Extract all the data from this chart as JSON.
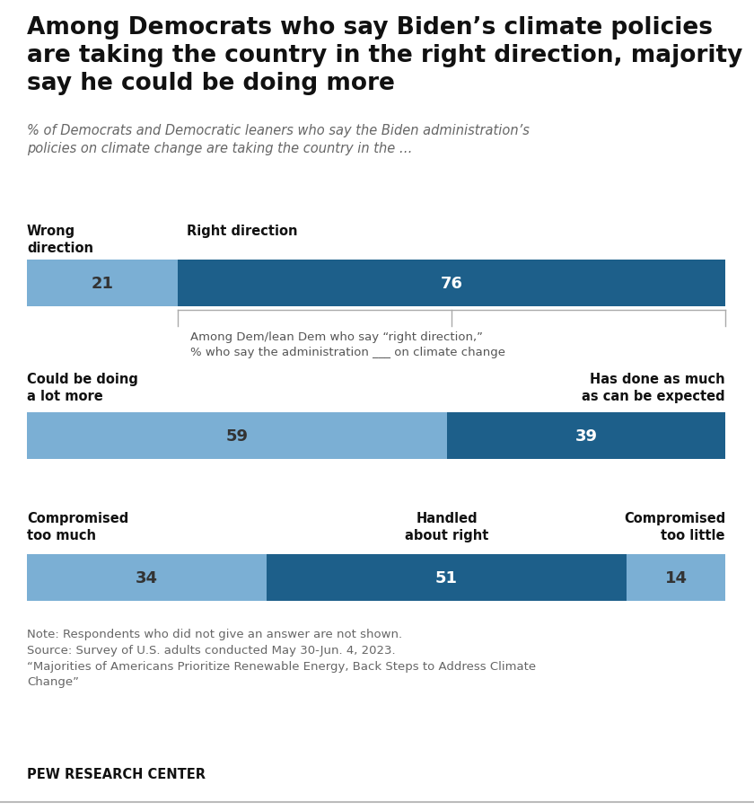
{
  "title": "Among Democrats who say Biden’s climate policies\nare taking the country in the right direction, majority\nsay he could be doing more",
  "subtitle": "% of Democrats and Democratic leaners who say the Biden administration’s\npolicies on climate change are taking the country in the …",
  "bar1": {
    "segments": [
      {
        "label": "Wrong\ndirection",
        "value": 21,
        "color": "#7bafd4",
        "text_color": "#333333"
      },
      {
        "label": "Right direction",
        "value": 76,
        "color": "#1d5f8a",
        "text_color": "#ffffff"
      }
    ]
  },
  "connector_text": "Among Dem/lean Dem who say “right direction,”\n% who say the administration ___ on climate change",
  "bar2": {
    "segments": [
      {
        "label": "Could be doing\na lot more",
        "value": 59,
        "color": "#7bafd4",
        "text_color": "#333333"
      },
      {
        "label": "Has done as much\nas can be expected",
        "value": 39,
        "color": "#1d5f8a",
        "text_color": "#ffffff"
      }
    ]
  },
  "bar3": {
    "segments": [
      {
        "label": "Compromised\ntoo much",
        "value": 34,
        "color": "#7bafd4",
        "text_color": "#333333"
      },
      {
        "label": "Handled\nabout right",
        "value": 51,
        "color": "#1d5f8a",
        "text_color": "#ffffff"
      },
      {
        "label": "Compromised\ntoo little",
        "value": 14,
        "color": "#7bafd4",
        "text_color": "#333333"
      }
    ]
  },
  "note_lines": [
    "Note: Respondents who did not give an answer are not shown.",
    "Source: Survey of U.S. adults conducted May 30-Jun. 4, 2023.",
    "“Majorities of Americans Prioritize Renewable Energy, Back Steps to Address Climate\nChange”"
  ],
  "source_label": "PEW RESEARCH CENTER",
  "light_blue": "#7bafd4",
  "dark_blue": "#1d5f8a",
  "bg_color": "#ffffff",
  "title_fontsize": 19,
  "subtitle_fontsize": 10.5,
  "label_fontsize": 10.5,
  "value_fontsize": 13,
  "note_fontsize": 9.5
}
